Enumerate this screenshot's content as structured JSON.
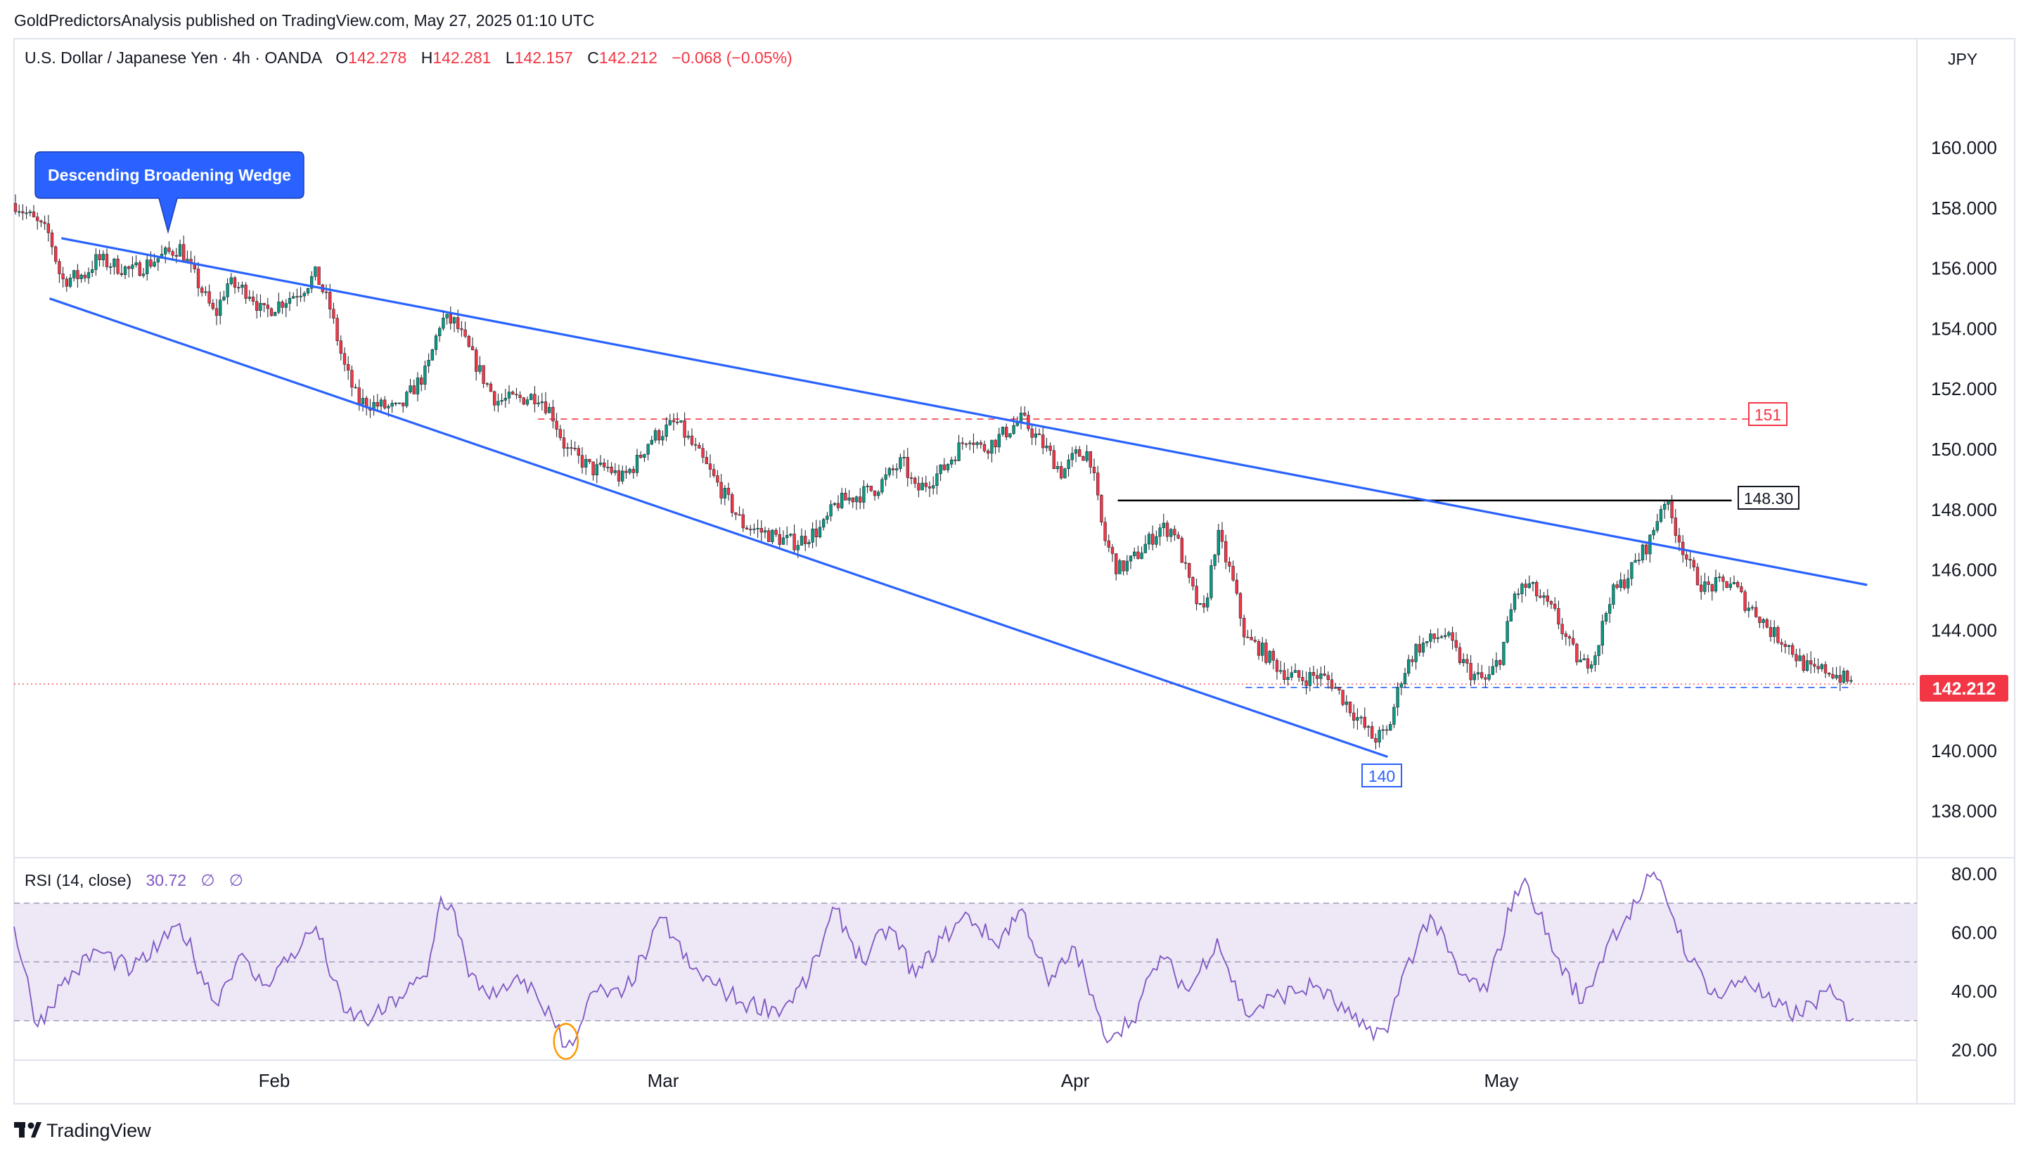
{
  "published_line": "GoldPredictorsAnalysis published on TradingView.com, May 27, 2025 01:10 UTC",
  "legend": {
    "symbol": "U.S. Dollar / Japanese Yen · 4h · OANDA",
    "open_label": "O",
    "open": "142.278",
    "high_label": "H",
    "high": "142.281",
    "low_label": "L",
    "low": "142.157",
    "close_label": "C",
    "close": "142.212",
    "change": "−0.068 (−0.05%)"
  },
  "currency": "JPY",
  "annotation_pattern": "Descending Broadening Wedge",
  "level_labels": {
    "resistance": "151",
    "neckline": "148.30",
    "support": "140"
  },
  "last_price_tag": "142.212",
  "rsi_legend": {
    "name": "RSI (14, close)",
    "value": "30.72",
    "extra1": "∅",
    "extra2": "∅"
  },
  "footer_brand": "TradingView",
  "colors": {
    "up": "#089981",
    "down": "#f23645",
    "wedge": "#2962ff",
    "rsi_line": "#7e57c2",
    "rsi_band": "#ede7f6",
    "resistance": "#f23645",
    "neckline": "#000000"
  },
  "chart_data": [
    {
      "type": "candlestick",
      "title": "U.S. Dollar / Japanese Yen · 4h · OANDA",
      "ylim": [
        136.5,
        163.5
      ],
      "y_ticks": [
        "160.000",
        "158.000",
        "156.000",
        "154.000",
        "152.000",
        "150.000",
        "148.000",
        "146.000",
        "144.000",
        "142.000",
        "140.000",
        "138.000"
      ],
      "x_ticks": [
        "Feb",
        "Mar",
        "Apr",
        "May"
      ],
      "x_tick_dates": [
        "2025-02-01",
        "2025-03-01",
        "2025-04-01",
        "2025-05-01"
      ],
      "date_range": [
        "2025-01-10",
        "2025-05-27"
      ],
      "close_path": [
        {
          "date": "2025-01-10",
          "price": 158.2
        },
        {
          "date": "2025-01-13",
          "price": 157.1
        },
        {
          "date": "2025-01-14",
          "price": 155.6
        },
        {
          "date": "2025-01-16",
          "price": 155.8
        },
        {
          "date": "2025-01-17",
          "price": 156.3
        },
        {
          "date": "2025-01-20",
          "price": 155.9
        },
        {
          "date": "2025-01-22",
          "price": 156.3
        },
        {
          "date": "2025-01-24",
          "price": 156.7
        },
        {
          "date": "2025-01-27",
          "price": 154.4
        },
        {
          "date": "2025-01-28",
          "price": 155.5
        },
        {
          "date": "2025-01-30",
          "price": 155.2
        },
        {
          "date": "2025-01-31",
          "price": 154.5
        },
        {
          "date": "2025-02-03",
          "price": 155.3
        },
        {
          "date": "2025-02-04",
          "price": 155.8
        },
        {
          "date": "2025-02-05",
          "price": 154.7
        },
        {
          "date": "2025-02-06",
          "price": 152.8
        },
        {
          "date": "2025-02-07",
          "price": 151.6
        },
        {
          "date": "2025-02-10",
          "price": 151.3
        },
        {
          "date": "2025-02-11",
          "price": 152.0
        },
        {
          "date": "2025-02-12",
          "price": 152.6
        },
        {
          "date": "2025-02-13",
          "price": 154.3
        },
        {
          "date": "2025-02-14",
          "price": 154.2
        },
        {
          "date": "2025-02-16",
          "price": 152.4
        },
        {
          "date": "2025-02-17",
          "price": 151.6
        },
        {
          "date": "2025-02-19",
          "price": 151.7
        },
        {
          "date": "2025-02-20",
          "price": 151.8
        },
        {
          "date": "2025-02-21",
          "price": 151.2
        },
        {
          "date": "2025-02-22",
          "price": 150.0
        },
        {
          "date": "2025-02-24",
          "price": 149.3
        },
        {
          "date": "2025-02-25",
          "price": 149.4
        },
        {
          "date": "2025-02-26",
          "price": 149.0
        },
        {
          "date": "2025-02-27",
          "price": 149.5
        },
        {
          "date": "2025-02-28",
          "price": 150.3
        },
        {
          "date": "2025-03-01",
          "price": 150.6
        },
        {
          "date": "2025-03-02",
          "price": 150.9
        },
        {
          "date": "2025-03-04",
          "price": 149.6
        },
        {
          "date": "2025-03-05",
          "price": 148.9
        },
        {
          "date": "2025-03-07",
          "price": 147.5
        },
        {
          "date": "2025-03-10",
          "price": 147.0
        },
        {
          "date": "2025-03-11",
          "price": 146.9
        },
        {
          "date": "2025-03-13",
          "price": 147.4
        },
        {
          "date": "2025-03-14",
          "price": 148.2
        },
        {
          "date": "2025-03-17",
          "price": 148.7
        },
        {
          "date": "2025-03-19",
          "price": 149.6
        },
        {
          "date": "2025-03-20",
          "price": 148.6
        },
        {
          "date": "2025-03-22",
          "price": 149.3
        },
        {
          "date": "2025-03-24",
          "price": 150.5
        },
        {
          "date": "2025-03-25",
          "price": 150.0
        },
        {
          "date": "2025-03-26",
          "price": 150.3
        },
        {
          "date": "2025-03-28",
          "price": 151.0
        },
        {
          "date": "2025-03-30",
          "price": 149.9
        },
        {
          "date": "2025-03-31",
          "price": 149.2
        },
        {
          "date": "2025-04-01",
          "price": 149.8
        },
        {
          "date": "2025-04-02",
          "price": 149.9
        },
        {
          "date": "2025-04-03",
          "price": 147.1
        },
        {
          "date": "2025-04-04",
          "price": 146.0
        },
        {
          "date": "2025-04-05",
          "price": 146.3
        },
        {
          "date": "2025-04-07",
          "price": 147.4
        },
        {
          "date": "2025-04-08",
          "price": 147.3
        },
        {
          "date": "2025-04-09",
          "price": 145.6
        },
        {
          "date": "2025-04-10",
          "price": 144.4
        },
        {
          "date": "2025-04-11",
          "price": 147.2
        },
        {
          "date": "2025-04-12",
          "price": 145.8
        },
        {
          "date": "2025-04-13",
          "price": 143.7
        },
        {
          "date": "2025-04-14",
          "price": 143.4
        },
        {
          "date": "2025-04-15",
          "price": 142.9
        },
        {
          "date": "2025-04-16",
          "price": 142.5
        },
        {
          "date": "2025-04-17",
          "price": 142.4
        },
        {
          "date": "2025-04-18",
          "price": 142.5
        },
        {
          "date": "2025-04-19",
          "price": 142.3
        },
        {
          "date": "2025-04-21",
          "price": 141.0
        },
        {
          "date": "2025-04-22",
          "price": 140.4
        },
        {
          "date": "2025-04-23",
          "price": 140.6
        },
        {
          "date": "2025-04-24",
          "price": 142.5
        },
        {
          "date": "2025-04-25",
          "price": 143.4
        },
        {
          "date": "2025-04-27",
          "price": 143.9
        },
        {
          "date": "2025-04-28",
          "price": 143.1
        },
        {
          "date": "2025-04-29",
          "price": 142.5
        },
        {
          "date": "2025-04-30",
          "price": 142.3
        },
        {
          "date": "2025-05-01",
          "price": 143.2
        },
        {
          "date": "2025-05-02",
          "price": 145.2
        },
        {
          "date": "2025-05-03",
          "price": 145.5
        },
        {
          "date": "2025-05-05",
          "price": 144.5
        },
        {
          "date": "2025-05-06",
          "price": 143.5
        },
        {
          "date": "2025-05-07",
          "price": 142.8
        },
        {
          "date": "2025-05-08",
          "price": 143.3
        },
        {
          "date": "2025-05-09",
          "price": 145.1
        },
        {
          "date": "2025-05-10",
          "price": 145.6
        },
        {
          "date": "2025-05-12",
          "price": 147.0
        },
        {
          "date": "2025-05-13",
          "price": 148.4
        },
        {
          "date": "2025-05-14",
          "price": 147.2
        },
        {
          "date": "2025-05-15",
          "price": 146.0
        },
        {
          "date": "2025-05-16",
          "price": 145.4
        },
        {
          "date": "2025-05-18",
          "price": 145.6
        },
        {
          "date": "2025-05-19",
          "price": 144.9
        },
        {
          "date": "2025-05-20",
          "price": 144.5
        },
        {
          "date": "2025-05-21",
          "price": 143.9
        },
        {
          "date": "2025-05-22",
          "price": 143.6
        },
        {
          "date": "2025-05-23",
          "price": 143.0
        },
        {
          "date": "2025-05-24",
          "price": 142.6
        },
        {
          "date": "2025-05-25",
          "price": 142.7
        },
        {
          "date": "2025-05-27",
          "price": 142.2
        }
      ],
      "trendlines": [
        {
          "name": "wedge-upper",
          "start": {
            "date": "2025-01-14",
            "price": 157.0
          },
          "end": {
            "date": "2025-05-28",
            "price": 145.5
          }
        },
        {
          "name": "wedge-lower",
          "start": {
            "date": "2025-01-13",
            "price": 155.0
          },
          "end": {
            "date": "2025-04-23",
            "price": 139.8
          }
        }
      ],
      "horizontal_levels": [
        {
          "name": "resistance-151",
          "price": 151.0,
          "from": "2025-02-20",
          "to": "2025-05-20",
          "style": "dashed-red"
        },
        {
          "name": "neckline-148.30",
          "price": 148.3,
          "from": "2025-04-04",
          "to": "2025-05-18",
          "style": "solid-black"
        },
        {
          "name": "support-dashed",
          "price": 142.1,
          "from": "2025-04-13",
          "to": "2025-05-27",
          "style": "dashed-blue"
        }
      ],
      "last_price": 142.212
    },
    {
      "type": "line",
      "title": "RSI (14, close)",
      "ylim": [
        17,
        85
      ],
      "y_ticks": [
        "80.00",
        "60.00",
        "40.00",
        "20.00"
      ],
      "band": [
        30,
        70
      ],
      "midline": 50,
      "series": [
        {
          "name": "RSI (14, close)",
          "points": [
            {
              "date": "2025-01-10",
              "v": 62
            },
            {
              "date": "2025-01-12",
              "v": 28
            },
            {
              "date": "2025-01-14",
              "v": 42
            },
            {
              "date": "2025-01-17",
              "v": 54
            },
            {
              "date": "2025-01-20",
              "v": 47
            },
            {
              "date": "2025-01-23",
              "v": 58
            },
            {
              "date": "2025-01-24",
              "v": 63
            },
            {
              "date": "2025-01-27",
              "v": 36
            },
            {
              "date": "2025-01-29",
              "v": 52
            },
            {
              "date": "2025-01-31",
              "v": 42
            },
            {
              "date": "2025-02-03",
              "v": 56
            },
            {
              "date": "2025-02-04",
              "v": 62
            },
            {
              "date": "2025-02-06",
              "v": 33
            },
            {
              "date": "2025-02-08",
              "v": 30
            },
            {
              "date": "2025-02-10",
              "v": 38
            },
            {
              "date": "2025-02-12",
              "v": 45
            },
            {
              "date": "2025-02-13",
              "v": 72
            },
            {
              "date": "2025-02-14",
              "v": 67
            },
            {
              "date": "2025-02-15",
              "v": 45
            },
            {
              "date": "2025-02-17",
              "v": 38
            },
            {
              "date": "2025-02-19",
              "v": 44
            },
            {
              "date": "2025-02-21",
              "v": 31
            },
            {
              "date": "2025-02-22",
              "v": 21
            },
            {
              "date": "2025-02-23",
              "v": 28
            },
            {
              "date": "2025-02-24",
              "v": 40
            },
            {
              "date": "2025-02-26",
              "v": 38
            },
            {
              "date": "2025-02-28",
              "v": 55
            },
            {
              "date": "2025-03-01",
              "v": 65
            },
            {
              "date": "2025-03-03",
              "v": 48
            },
            {
              "date": "2025-03-05",
              "v": 42
            },
            {
              "date": "2025-03-07",
              "v": 36
            },
            {
              "date": "2025-03-10",
              "v": 34
            },
            {
              "date": "2025-03-12",
              "v": 45
            },
            {
              "date": "2025-03-14",
              "v": 68
            },
            {
              "date": "2025-03-16",
              "v": 50
            },
            {
              "date": "2025-03-18",
              "v": 62
            },
            {
              "date": "2025-03-20",
              "v": 45
            },
            {
              "date": "2025-03-22",
              "v": 58
            },
            {
              "date": "2025-03-24",
              "v": 66
            },
            {
              "date": "2025-03-26",
              "v": 56
            },
            {
              "date": "2025-03-28",
              "v": 68
            },
            {
              "date": "2025-03-30",
              "v": 42
            },
            {
              "date": "2025-04-01",
              "v": 55
            },
            {
              "date": "2025-04-03",
              "v": 25
            },
            {
              "date": "2025-04-05",
              "v": 30
            },
            {
              "date": "2025-04-07",
              "v": 52
            },
            {
              "date": "2025-04-09",
              "v": 40
            },
            {
              "date": "2025-04-11",
              "v": 58
            },
            {
              "date": "2025-04-13",
              "v": 32
            },
            {
              "date": "2025-04-15",
              "v": 38
            },
            {
              "date": "2025-04-18",
              "v": 42
            },
            {
              "date": "2025-04-21",
              "v": 28
            },
            {
              "date": "2025-04-23",
              "v": 26
            },
            {
              "date": "2025-04-24",
              "v": 45
            },
            {
              "date": "2025-04-26",
              "v": 66
            },
            {
              "date": "2025-04-28",
              "v": 46
            },
            {
              "date": "2025-04-30",
              "v": 40
            },
            {
              "date": "2025-05-02",
              "v": 74
            },
            {
              "date": "2025-05-03",
              "v": 76
            },
            {
              "date": "2025-05-05",
              "v": 52
            },
            {
              "date": "2025-05-07",
              "v": 36
            },
            {
              "date": "2025-05-09",
              "v": 58
            },
            {
              "date": "2025-05-11",
              "v": 70
            },
            {
              "date": "2025-05-12",
              "v": 79
            },
            {
              "date": "2025-05-13",
              "v": 74
            },
            {
              "date": "2025-05-15",
              "v": 50
            },
            {
              "date": "2025-05-17",
              "v": 38
            },
            {
              "date": "2025-05-19",
              "v": 45
            },
            {
              "date": "2025-05-21",
              "v": 35
            },
            {
              "date": "2025-05-23",
              "v": 32
            },
            {
              "date": "2025-05-25",
              "v": 40
            },
            {
              "date": "2025-05-27",
              "v": 30.72
            }
          ]
        }
      ],
      "circled_low": {
        "date": "2025-02-22",
        "v": 21
      }
    }
  ]
}
